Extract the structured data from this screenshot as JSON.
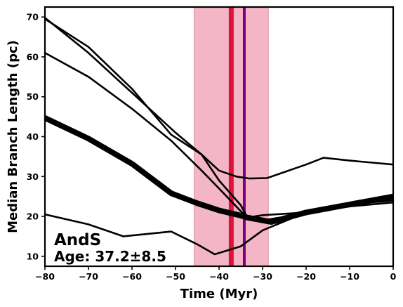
{
  "chart_data": {
    "type": "line",
    "xlabel": "Time (Myr)",
    "ylabel": "Median Branch Length (pc)",
    "xlim": [
      -80,
      0
    ],
    "ylim": [
      7.5,
      72.5
    ],
    "xticks": [
      -80,
      -70,
      -60,
      -50,
      -40,
      -30,
      -20,
      -10,
      0
    ],
    "yticks": [
      10,
      20,
      30,
      40,
      50,
      60,
      70
    ],
    "xtick_labels": [
      "−80",
      "−70",
      "−60",
      "−50",
      "−40",
      "−30",
      "−20",
      "−10",
      "0"
    ],
    "ytick_labels": [
      "10",
      "20",
      "30",
      "40",
      "50",
      "60",
      "70"
    ],
    "grid": false,
    "annotation": {
      "name": "AndS",
      "age": "Age: 37.2±8.5"
    },
    "age_band": {
      "from": -45.7,
      "to": -28.7,
      "color": "#f4b6c6"
    },
    "vlines": [
      {
        "x": -37.2,
        "color": "#dc143c"
      },
      {
        "x": -34.2,
        "color": "#800080"
      }
    ],
    "series": [
      {
        "thick": true,
        "x": [
          -80,
          -70,
          -60,
          -51,
          -45,
          -40,
          -35,
          -33.5,
          -30,
          -28,
          -25,
          -20,
          -10,
          0
        ],
        "y": [
          44.7,
          39.5,
          33.2,
          25.8,
          23.3,
          21.5,
          20.2,
          19.7,
          19.0,
          18.6,
          19.5,
          21.0,
          23.0,
          25.0
        ]
      },
      {
        "thick": false,
        "x": [
          -80,
          -70,
          -60,
          -50,
          -44,
          -40,
          -35,
          -33.5,
          -30,
          -20,
          -10,
          0
        ],
        "y": [
          69.8,
          61.0,
          51.0,
          41.0,
          35.5,
          29.0,
          22.8,
          19.7,
          20.3,
          21.0,
          23.0,
          24.5
        ]
      },
      {
        "thick": false,
        "x": [
          -80,
          -70,
          -60,
          -51,
          -44,
          -40,
          -35,
          -33.5,
          -30,
          -20,
          -10,
          0
        ],
        "y": [
          61.0,
          55.0,
          47.0,
          39.0,
          31.5,
          27.0,
          21.3,
          19.7,
          19.0,
          20.8,
          23.0,
          24.0
        ]
      },
      {
        "thick": false,
        "x": [
          -80,
          -70,
          -62,
          -51,
          -45,
          -41,
          -35,
          -30,
          -20,
          -10,
          0
        ],
        "y": [
          20.5,
          18.0,
          15.0,
          16.2,
          13.0,
          10.5,
          12.5,
          16.5,
          21.0,
          22.5,
          23.5
        ]
      },
      {
        "thick": false,
        "x": [
          -80,
          -70,
          -60,
          -51,
          -44,
          -40,
          -36,
          -33,
          -29,
          -20,
          -16,
          -10,
          0
        ],
        "y": [
          69.5,
          62.5,
          52.0,
          40.5,
          35.5,
          31.5,
          30.0,
          29.5,
          29.6,
          33.0,
          34.7,
          34.0,
          33.0
        ]
      }
    ]
  }
}
